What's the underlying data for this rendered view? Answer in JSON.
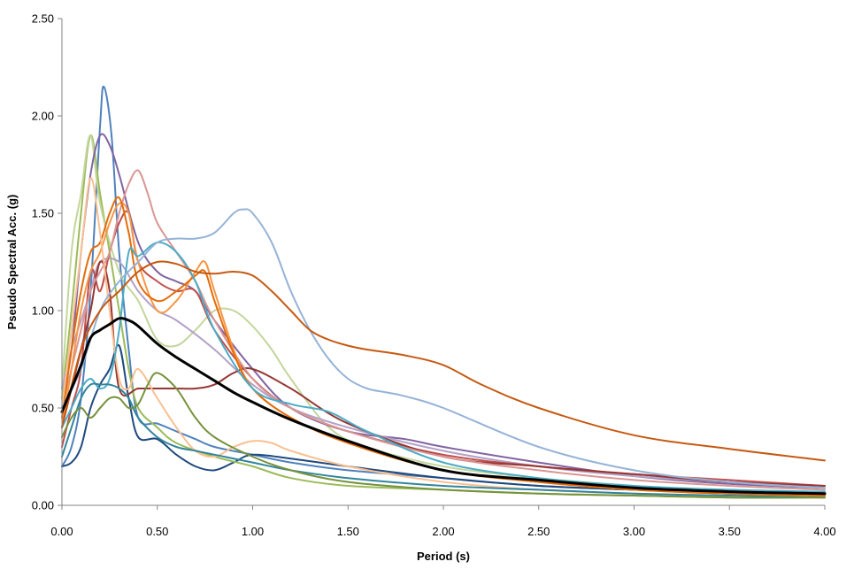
{
  "chart_data": {
    "type": "line",
    "title": "",
    "xlabel": "Period (s)",
    "ylabel": "Pseudo Spectral Acc. (g)",
    "xlim": [
      0,
      4
    ],
    "ylim": [
      0,
      2.5
    ],
    "x_ticks": [
      "0.00",
      "0.50",
      "1.00",
      "1.50",
      "2.00",
      "2.50",
      "3.00",
      "3.50",
      "4.00"
    ],
    "y_ticks": [
      "0.00",
      "0.50",
      "1.00",
      "1.50",
      "2.00",
      "2.50"
    ],
    "x_tick_values": [
      0,
      0.5,
      1,
      1.5,
      2,
      2.5,
      3,
      3.5,
      4
    ],
    "y_tick_values": [
      0,
      0.5,
      1,
      1.5,
      2,
      2.5
    ],
    "grid": false,
    "legend": "none",
    "series": [
      {
        "color": "#4F81BD",
        "x": [
          0,
          0.05,
          0.1,
          0.15,
          0.2,
          0.22,
          0.26,
          0.3,
          0.35,
          0.4,
          0.5,
          0.6,
          0.7,
          0.8,
          1.0,
          1.2,
          1.5,
          2.0,
          2.5,
          3.0,
          3.5,
          4.0
        ],
        "y": [
          0.2,
          0.3,
          0.55,
          1.1,
          1.95,
          2.15,
          1.9,
          1.3,
          0.8,
          0.45,
          0.42,
          0.38,
          0.34,
          0.3,
          0.26,
          0.22,
          0.18,
          0.14,
          0.1,
          0.08,
          0.06,
          0.05
        ]
      },
      {
        "color": "#1F497D",
        "x": [
          0,
          0.05,
          0.1,
          0.15,
          0.2,
          0.25,
          0.3,
          0.35,
          0.4,
          0.5,
          0.6,
          0.7,
          0.8,
          0.9,
          1.0,
          1.2,
          1.5,
          2.0,
          2.5,
          3.0,
          3.5,
          4.0
        ],
        "y": [
          0.2,
          0.22,
          0.3,
          0.5,
          0.62,
          0.7,
          0.82,
          0.55,
          0.35,
          0.34,
          0.26,
          0.2,
          0.18,
          0.22,
          0.26,
          0.24,
          0.2,
          0.14,
          0.1,
          0.08,
          0.06,
          0.05
        ]
      },
      {
        "color": "#9BBB59",
        "x": [
          0,
          0.05,
          0.1,
          0.15,
          0.2,
          0.25,
          0.3,
          0.35,
          0.4,
          0.5,
          0.6,
          0.8,
          1.0,
          1.2,
          1.5,
          2.0,
          2.5,
          3.0,
          3.5,
          4.0
        ],
        "y": [
          0.55,
          1.0,
          1.5,
          1.9,
          1.6,
          1.3,
          1.0,
          0.7,
          0.5,
          0.4,
          0.32,
          0.25,
          0.2,
          0.14,
          0.1,
          0.08,
          0.06,
          0.05,
          0.04,
          0.04
        ]
      },
      {
        "color": "#C3D69B",
        "x": [
          0,
          0.05,
          0.1,
          0.15,
          0.2,
          0.3,
          0.4,
          0.5,
          0.6,
          0.7,
          0.8,
          0.9,
          1.0,
          1.1,
          1.2,
          1.4,
          1.6,
          2.0,
          2.5,
          3.0,
          3.5,
          4.0
        ],
        "y": [
          0.6,
          1.3,
          1.6,
          1.9,
          1.55,
          1.2,
          1.05,
          0.85,
          0.82,
          0.9,
          1.0,
          1.0,
          0.92,
          0.8,
          0.65,
          0.4,
          0.3,
          0.2,
          0.14,
          0.1,
          0.07,
          0.06
        ]
      },
      {
        "color": "#8064A2",
        "x": [
          0,
          0.05,
          0.1,
          0.15,
          0.2,
          0.25,
          0.3,
          0.4,
          0.5,
          0.6,
          0.7,
          0.8,
          1.0,
          1.2,
          1.5,
          1.8,
          2.0,
          2.5,
          3.0,
          3.5,
          4.0
        ],
        "y": [
          0.5,
          0.8,
          1.3,
          1.7,
          1.9,
          1.85,
          1.7,
          1.35,
          1.2,
          1.15,
          1.1,
          0.95,
          0.7,
          0.5,
          0.38,
          0.34,
          0.3,
          0.22,
          0.15,
          0.11,
          0.09
        ]
      },
      {
        "color": "#B3A2C7",
        "x": [
          0,
          0.05,
          0.1,
          0.15,
          0.2,
          0.3,
          0.4,
          0.5,
          0.6,
          0.8,
          1.0,
          1.2,
          1.5,
          2.0,
          2.5,
          3.0,
          3.5,
          4.0
        ],
        "y": [
          0.6,
          0.8,
          0.95,
          1.1,
          1.25,
          1.25,
          1.1,
          1.0,
          0.95,
          0.8,
          0.62,
          0.5,
          0.4,
          0.28,
          0.2,
          0.15,
          0.12,
          0.1
        ]
      },
      {
        "color": "#C0504D",
        "x": [
          0,
          0.05,
          0.1,
          0.15,
          0.2,
          0.25,
          0.3,
          0.35,
          0.4,
          0.5,
          0.6,
          0.7,
          0.8,
          1.0,
          1.2,
          1.5,
          2.0,
          2.5,
          3.0,
          3.5,
          4.0
        ],
        "y": [
          0.3,
          0.5,
          0.7,
          1.2,
          1.1,
          1.3,
          1.45,
          1.5,
          1.25,
          1.15,
          1.1,
          1.1,
          0.9,
          0.65,
          0.5,
          0.38,
          0.26,
          0.2,
          0.16,
          0.13,
          0.1
        ]
      },
      {
        "color": "#953735",
        "x": [
          0,
          0.05,
          0.1,
          0.15,
          0.2,
          0.25,
          0.3,
          0.4,
          0.5,
          0.6,
          0.7,
          0.8,
          0.9,
          1.0,
          1.2,
          1.5,
          2.0,
          2.5,
          3.0,
          3.5,
          4.0
        ],
        "y": [
          0.4,
          0.6,
          0.8,
          1.0,
          1.25,
          1.1,
          0.6,
          0.6,
          0.6,
          0.6,
          0.6,
          0.62,
          0.68,
          0.7,
          0.6,
          0.42,
          0.25,
          0.2,
          0.16,
          0.12,
          0.1
        ]
      },
      {
        "color": "#D99694",
        "x": [
          0,
          0.05,
          0.1,
          0.15,
          0.2,
          0.25,
          0.3,
          0.35,
          0.4,
          0.45,
          0.5,
          0.6,
          0.7,
          0.8,
          1.0,
          1.2,
          1.5,
          2.0,
          2.5,
          3.0,
          3.5,
          4.0
        ],
        "y": [
          0.5,
          0.7,
          0.9,
          1.1,
          1.2,
          1.3,
          1.5,
          1.65,
          1.72,
          1.6,
          1.45,
          1.3,
          1.15,
          0.95,
          0.65,
          0.5,
          0.38,
          0.25,
          0.18,
          0.13,
          0.1,
          0.08
        ]
      },
      {
        "color": "#F79646",
        "x": [
          0,
          0.05,
          0.1,
          0.15,
          0.2,
          0.25,
          0.3,
          0.35,
          0.4,
          0.5,
          0.6,
          0.7,
          0.75,
          0.8,
          0.9,
          1.0,
          1.2,
          1.5,
          2.0,
          2.5,
          3.0,
          3.5,
          4.0
        ],
        "y": [
          0.4,
          0.7,
          1.0,
          1.2,
          1.3,
          1.45,
          1.55,
          1.5,
          1.25,
          1.0,
          1.05,
          1.2,
          1.25,
          1.1,
          0.8,
          0.6,
          0.45,
          0.32,
          0.18,
          0.12,
          0.08,
          0.06,
          0.05
        ]
      },
      {
        "color": "#E46C0A",
        "x": [
          0,
          0.05,
          0.1,
          0.15,
          0.2,
          0.25,
          0.3,
          0.35,
          0.4,
          0.5,
          0.6,
          0.7,
          0.75,
          0.8,
          0.9,
          1.0,
          1.2,
          1.5,
          2.0,
          2.5,
          3.0,
          3.5,
          4.0
        ],
        "y": [
          0.45,
          0.8,
          1.1,
          1.3,
          1.35,
          1.5,
          1.58,
          1.4,
          1.15,
          1.05,
          1.1,
          1.18,
          1.2,
          1.05,
          0.78,
          0.6,
          0.45,
          0.32,
          0.18,
          0.12,
          0.08,
          0.06,
          0.05
        ]
      },
      {
        "color": "#FAC090",
        "x": [
          0,
          0.05,
          0.1,
          0.15,
          0.2,
          0.25,
          0.3,
          0.35,
          0.4,
          0.5,
          0.6,
          0.7,
          0.8,
          0.9,
          1.0,
          1.1,
          1.2,
          1.5,
          2.0,
          2.5,
          3.0,
          3.5,
          4.0
        ],
        "y": [
          0.5,
          0.9,
          1.3,
          1.68,
          1.4,
          1.0,
          0.65,
          0.6,
          0.7,
          0.55,
          0.4,
          0.28,
          0.25,
          0.3,
          0.33,
          0.32,
          0.28,
          0.2,
          0.12,
          0.08,
          0.06,
          0.05,
          0.04
        ]
      },
      {
        "color": "#4BACC6",
        "x": [
          0,
          0.05,
          0.1,
          0.15,
          0.2,
          0.25,
          0.3,
          0.35,
          0.4,
          0.5,
          0.6,
          0.7,
          0.8,
          1.0,
          1.2,
          1.4,
          1.6,
          2.0,
          2.5,
          3.0,
          3.5,
          4.0
        ],
        "y": [
          0.4,
          0.5,
          0.6,
          0.65,
          0.6,
          0.65,
          0.9,
          1.3,
          1.28,
          1.35,
          1.3,
          1.15,
          0.9,
          0.6,
          0.52,
          0.48,
          0.38,
          0.22,
          0.14,
          0.1,
          0.08,
          0.07
        ]
      },
      {
        "color": "#31859C",
        "x": [
          0,
          0.05,
          0.1,
          0.15,
          0.2,
          0.25,
          0.3,
          0.35,
          0.4,
          0.5,
          0.6,
          0.7,
          0.8,
          1.0,
          1.2,
          1.5,
          2.0,
          2.5,
          3.0,
          3.5,
          4.0
        ],
        "y": [
          0.25,
          0.4,
          0.55,
          0.62,
          0.62,
          0.62,
          0.6,
          0.55,
          0.45,
          0.35,
          0.3,
          0.28,
          0.26,
          0.22,
          0.18,
          0.14,
          0.1,
          0.08,
          0.06,
          0.05,
          0.04
        ]
      },
      {
        "color": "#76923C",
        "x": [
          0,
          0.05,
          0.1,
          0.15,
          0.2,
          0.25,
          0.3,
          0.35,
          0.4,
          0.45,
          0.5,
          0.6,
          0.7,
          0.8,
          1.0,
          1.2,
          1.5,
          2.0,
          2.5,
          3.0,
          3.5,
          4.0
        ],
        "y": [
          0.35,
          0.45,
          0.5,
          0.45,
          0.5,
          0.55,
          0.55,
          0.5,
          0.52,
          0.62,
          0.68,
          0.6,
          0.45,
          0.35,
          0.25,
          0.18,
          0.12,
          0.08,
          0.06,
          0.05,
          0.04,
          0.04
        ]
      },
      {
        "color": "#95B3D7",
        "x": [
          0,
          0.1,
          0.2,
          0.3,
          0.4,
          0.5,
          0.6,
          0.7,
          0.8,
          0.9,
          0.95,
          1.0,
          1.1,
          1.2,
          1.3,
          1.4,
          1.5,
          1.6,
          1.7,
          1.8,
          2.0,
          2.5,
          3.0,
          3.5,
          4.0
        ],
        "y": [
          0.5,
          0.7,
          1.0,
          1.15,
          1.25,
          1.35,
          1.37,
          1.37,
          1.4,
          1.5,
          1.52,
          1.5,
          1.35,
          1.1,
          0.9,
          0.75,
          0.65,
          0.6,
          0.58,
          0.56,
          0.5,
          0.3,
          0.18,
          0.12,
          0.09
        ]
      },
      {
        "color": "#C65911",
        "x": [
          0,
          0.1,
          0.2,
          0.3,
          0.4,
          0.5,
          0.6,
          0.7,
          0.8,
          0.9,
          1.0,
          1.1,
          1.2,
          1.3,
          1.4,
          1.5,
          1.6,
          1.8,
          2.0,
          2.2,
          2.5,
          3.0,
          3.5,
          4.0
        ],
        "y": [
          0.4,
          0.8,
          1.0,
          1.1,
          1.2,
          1.25,
          1.24,
          1.2,
          1.19,
          1.2,
          1.18,
          1.1,
          1.0,
          0.9,
          0.85,
          0.82,
          0.8,
          0.77,
          0.72,
          0.62,
          0.5,
          0.36,
          0.29,
          0.23
        ]
      },
      {
        "color": "#000000",
        "width": 3,
        "x": [
          0,
          0.05,
          0.1,
          0.15,
          0.2,
          0.25,
          0.3,
          0.35,
          0.4,
          0.5,
          0.6,
          0.7,
          0.8,
          0.9,
          1.0,
          1.2,
          1.5,
          2.0,
          2.5,
          3.0,
          3.5,
          4.0
        ],
        "y": [
          0.48,
          0.6,
          0.72,
          0.86,
          0.9,
          0.93,
          0.96,
          0.95,
          0.92,
          0.83,
          0.76,
          0.7,
          0.64,
          0.58,
          0.53,
          0.44,
          0.33,
          0.18,
          0.13,
          0.09,
          0.07,
          0.06
        ]
      }
    ]
  }
}
